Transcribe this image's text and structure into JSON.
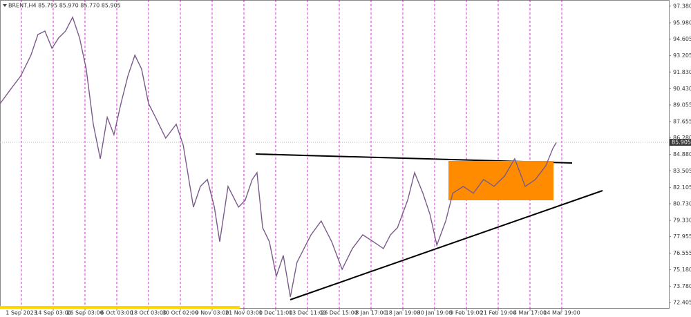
{
  "chart_data": {
    "type": "line",
    "title": "BRENT,H4 85.795 85.970 85.770 85.905",
    "color": "#7a5a8a",
    "grid": "vertical",
    "x": [
      -6.7,
      -3.5,
      -0.2,
      3.0,
      5.2,
      7.4,
      9.6,
      11.7,
      13.9,
      16.1,
      18.3,
      20.4,
      22.6,
      24.8,
      27.0,
      29.1,
      31.3,
      33.5,
      35.7,
      37.8,
      40.0,
      42.2,
      45.4,
      48.7,
      50.9,
      54.1,
      56.3,
      58.5,
      60.7,
      62.4,
      65.0,
      68.3,
      70.4,
      72.6,
      74.1,
      75.9,
      78.0,
      80.2,
      82.4,
      84.6,
      86.7,
      88.9,
      91.1,
      94.3,
      97.6,
      100.9,
      104.1,
      107.4,
      110.7,
      113.9,
      116.1,
      118.3,
      121.5,
      123.7,
      126.3,
      128.5,
      130.7,
      133.5,
      135.7,
      139.0,
      142.2,
      145.4,
      148.7,
      152.0,
      155.2,
      158.5,
      161.7,
      165.0,
      167.2,
      168.3
    ],
    "values": [
      89.17,
      90.34,
      91.5,
      93.25,
      94.99,
      95.28,
      93.83,
      94.7,
      95.28,
      96.45,
      94.7,
      92.08,
      87.43,
      84.52,
      88.01,
      86.55,
      89.17,
      91.5,
      93.25,
      92.08,
      89.17,
      88.01,
      86.26,
      87.43,
      85.68,
      80.44,
      82.19,
      82.77,
      80.44,
      77.53,
      82.19,
      80.44,
      81.02,
      82.77,
      83.35,
      78.7,
      77.53,
      74.62,
      76.37,
      72.87,
      75.79,
      76.95,
      78.11,
      79.28,
      77.53,
      75.2,
      76.95,
      78.11,
      77.53,
      76.95,
      78.11,
      78.7,
      81.02,
      83.35,
      81.61,
      79.86,
      77.24,
      79.28,
      81.61,
      82.19,
      81.61,
      82.77,
      82.19,
      83.06,
      84.52,
      82.19,
      82.77,
      83.94,
      85.39,
      85.905
    ],
    "xlim": [
      -6.74,
      203.7
    ],
    "xticks": [
      {
        "value": 0,
        "label": "1 Sep 2023"
      },
      {
        "value": 10,
        "label": "14 Sep 03:00"
      },
      {
        "value": 20,
        "label": "26 Sep 03:00"
      },
      {
        "value": 30,
        "label": "6 Oct 03:00"
      },
      {
        "value": 40,
        "label": "18 Oct 03:00"
      },
      {
        "value": 50,
        "label": "30 Oct 02:00"
      },
      {
        "value": 60,
        "label": "9 Nov 03:00"
      },
      {
        "value": 70,
        "label": "21 Nov 03:00"
      },
      {
        "value": 80,
        "label": "1 Dec 11:00"
      },
      {
        "value": 90,
        "label": "13 Dec 11:00"
      },
      {
        "value": 100,
        "label": "26 Dec 15:00"
      },
      {
        "value": 110,
        "label": "8 Jan 17:00"
      },
      {
        "value": 120,
        "label": "18 Jan 19:00"
      },
      {
        "value": 130,
        "label": "30 Jan 19:00"
      },
      {
        "value": 140,
        "label": "9 Feb 19:00"
      },
      {
        "value": 150,
        "label": "21 Feb 19:00"
      },
      {
        "value": 160,
        "label": "4 Mar 17:00"
      },
      {
        "value": 170,
        "label": "14 Mar 19:00"
      }
    ],
    "ylim": [
      71.88,
      97.9
    ],
    "yticks": [
      {
        "value": 97.38,
        "label": "97.380"
      },
      {
        "value": 95.98,
        "label": "95.980"
      },
      {
        "value": 94.605,
        "label": "94.605"
      },
      {
        "value": 93.205,
        "label": "93.205"
      },
      {
        "value": 91.83,
        "label": "91.830"
      },
      {
        "value": 90.43,
        "label": "90.430"
      },
      {
        "value": 89.055,
        "label": "89.055"
      },
      {
        "value": 87.655,
        "label": "87.655"
      },
      {
        "value": 86.28,
        "label": "86.280"
      },
      {
        "value": 84.88,
        "label": "84.880"
      },
      {
        "value": 83.505,
        "label": "83.505"
      },
      {
        "value": 82.105,
        "label": "82.105"
      },
      {
        "value": 80.73,
        "label": "80.730"
      },
      {
        "value": 79.33,
        "label": "79.330"
      },
      {
        "value": 77.955,
        "label": "77.955"
      },
      {
        "value": 76.555,
        "label": "76.555"
      },
      {
        "value": 75.18,
        "label": "75.180"
      },
      {
        "value": 73.78,
        "label": "73.780"
      },
      {
        "value": 72.405,
        "label": "72.405"
      }
    ],
    "last_price": {
      "value": 85.905,
      "label": "85.905"
    }
  }
}
